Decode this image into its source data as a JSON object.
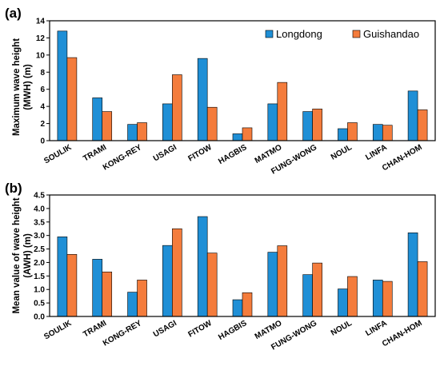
{
  "colors": {
    "longdong": "#1f8fd6",
    "guishandao": "#f47c3c"
  },
  "chart_data": [
    {
      "type": "bar",
      "panel_label": "(a)",
      "ylabel_lines": [
        "Maximum wave height",
        "(MWH) (m)"
      ],
      "categories": [
        "SOULIK",
        "TRAMI",
        "KONG-REY",
        "USAGI",
        "FITOW",
        "HAGBIS",
        "MATMO",
        "FUNG-WONG",
        "NOUL",
        "LINFA",
        "CHAN-HOM"
      ],
      "series": [
        {
          "name": "Longdong",
          "color": "#1f8fd6",
          "values": [
            12.8,
            5.0,
            1.9,
            4.3,
            9.6,
            0.8,
            4.3,
            3.4,
            1.4,
            1.9,
            5.8
          ]
        },
        {
          "name": "Guishandao",
          "color": "#f47c3c",
          "values": [
            9.7,
            3.4,
            2.1,
            7.7,
            3.9,
            1.5,
            6.8,
            3.7,
            2.1,
            1.8,
            3.6
          ]
        }
      ],
      "ylim": [
        0,
        14
      ],
      "yticks": [
        0,
        2,
        4,
        6,
        8,
        10,
        12,
        14
      ],
      "ytick_labels": [
        "0",
        "2",
        "4",
        "6",
        "8",
        "10",
        "12",
        "14"
      ],
      "legend": "top-right"
    },
    {
      "type": "bar",
      "panel_label": "(b)",
      "ylabel_lines": [
        "Mean value of wave height",
        "(AWH) (m)"
      ],
      "categories": [
        "SOULIK",
        "TRAMI",
        "KONG-REY",
        "USAGI",
        "FITOW",
        "HAGBIS",
        "MATMO",
        "FUNG-WONG",
        "NOUL",
        "LINFA",
        "CHAN-HOM"
      ],
      "series": [
        {
          "name": "Longdong",
          "color": "#1f8fd6",
          "values": [
            2.95,
            2.12,
            0.9,
            2.63,
            3.7,
            0.62,
            2.38,
            1.55,
            1.02,
            1.35,
            3.1
          ]
        },
        {
          "name": "Guishandao",
          "color": "#f47c3c",
          "values": [
            2.3,
            1.65,
            1.35,
            3.25,
            2.35,
            0.88,
            2.62,
            1.98,
            1.48,
            1.3,
            2.03
          ]
        }
      ],
      "ylim": [
        0,
        4.5
      ],
      "yticks": [
        0,
        0.5,
        1.0,
        1.5,
        2.0,
        2.5,
        3.0,
        3.5,
        4.0,
        4.5
      ],
      "ytick_labels": [
        "0.0",
        "0.5",
        "1.0",
        "1.5",
        "2.0",
        "2.5",
        "3.0",
        "3.5",
        "4.0",
        "4.5"
      ],
      "legend": "none"
    }
  ]
}
